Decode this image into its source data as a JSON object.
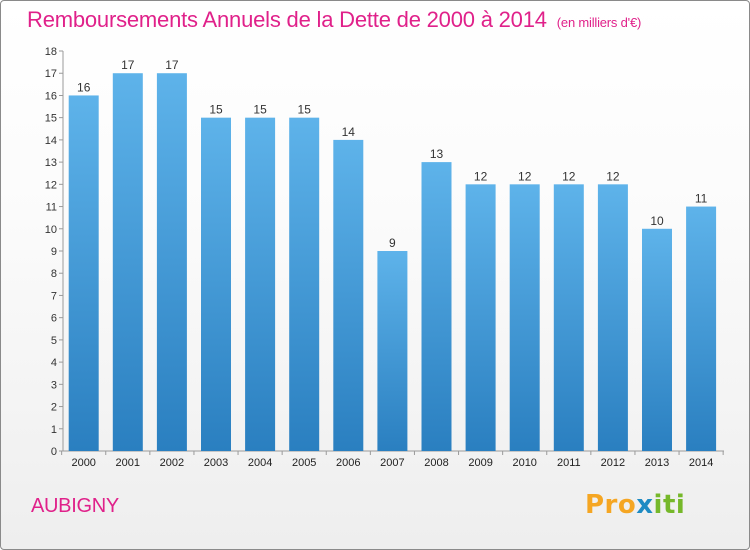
{
  "header": {
    "title": "Remboursements Annuels de la Dette de 2000 à 2014",
    "unit_note": "(en milliers d'€)"
  },
  "footer": {
    "commune": "AUBIGNY",
    "logo": {
      "part1": "Pro",
      "part2": "x",
      "part3": "iti"
    }
  },
  "colors": {
    "title": "#e0218a",
    "bar_top": "#5eb3ea",
    "bar_bottom": "#2a7fc0"
  },
  "chart_data": {
    "type": "bar",
    "title": "Remboursements Annuels de la Dette de 2000 à 2014",
    "subtitle": "(en milliers d'€)",
    "xlabel": "",
    "ylabel": "",
    "categories": [
      "2000",
      "2001",
      "2002",
      "2003",
      "2004",
      "2005",
      "2006",
      "2007",
      "2008",
      "2009",
      "2010",
      "2011",
      "2012",
      "2013",
      "2014"
    ],
    "values": [
      16,
      17,
      17,
      15,
      15,
      15,
      14,
      9,
      13,
      12,
      12,
      12,
      12,
      10,
      11
    ],
    "ylim": [
      0,
      18
    ],
    "yticks": [
      0,
      1,
      2,
      3,
      4,
      5,
      6,
      7,
      8,
      9,
      10,
      11,
      12,
      13,
      14,
      15,
      16,
      17,
      18
    ],
    "grid": false,
    "data_labels": true
  }
}
